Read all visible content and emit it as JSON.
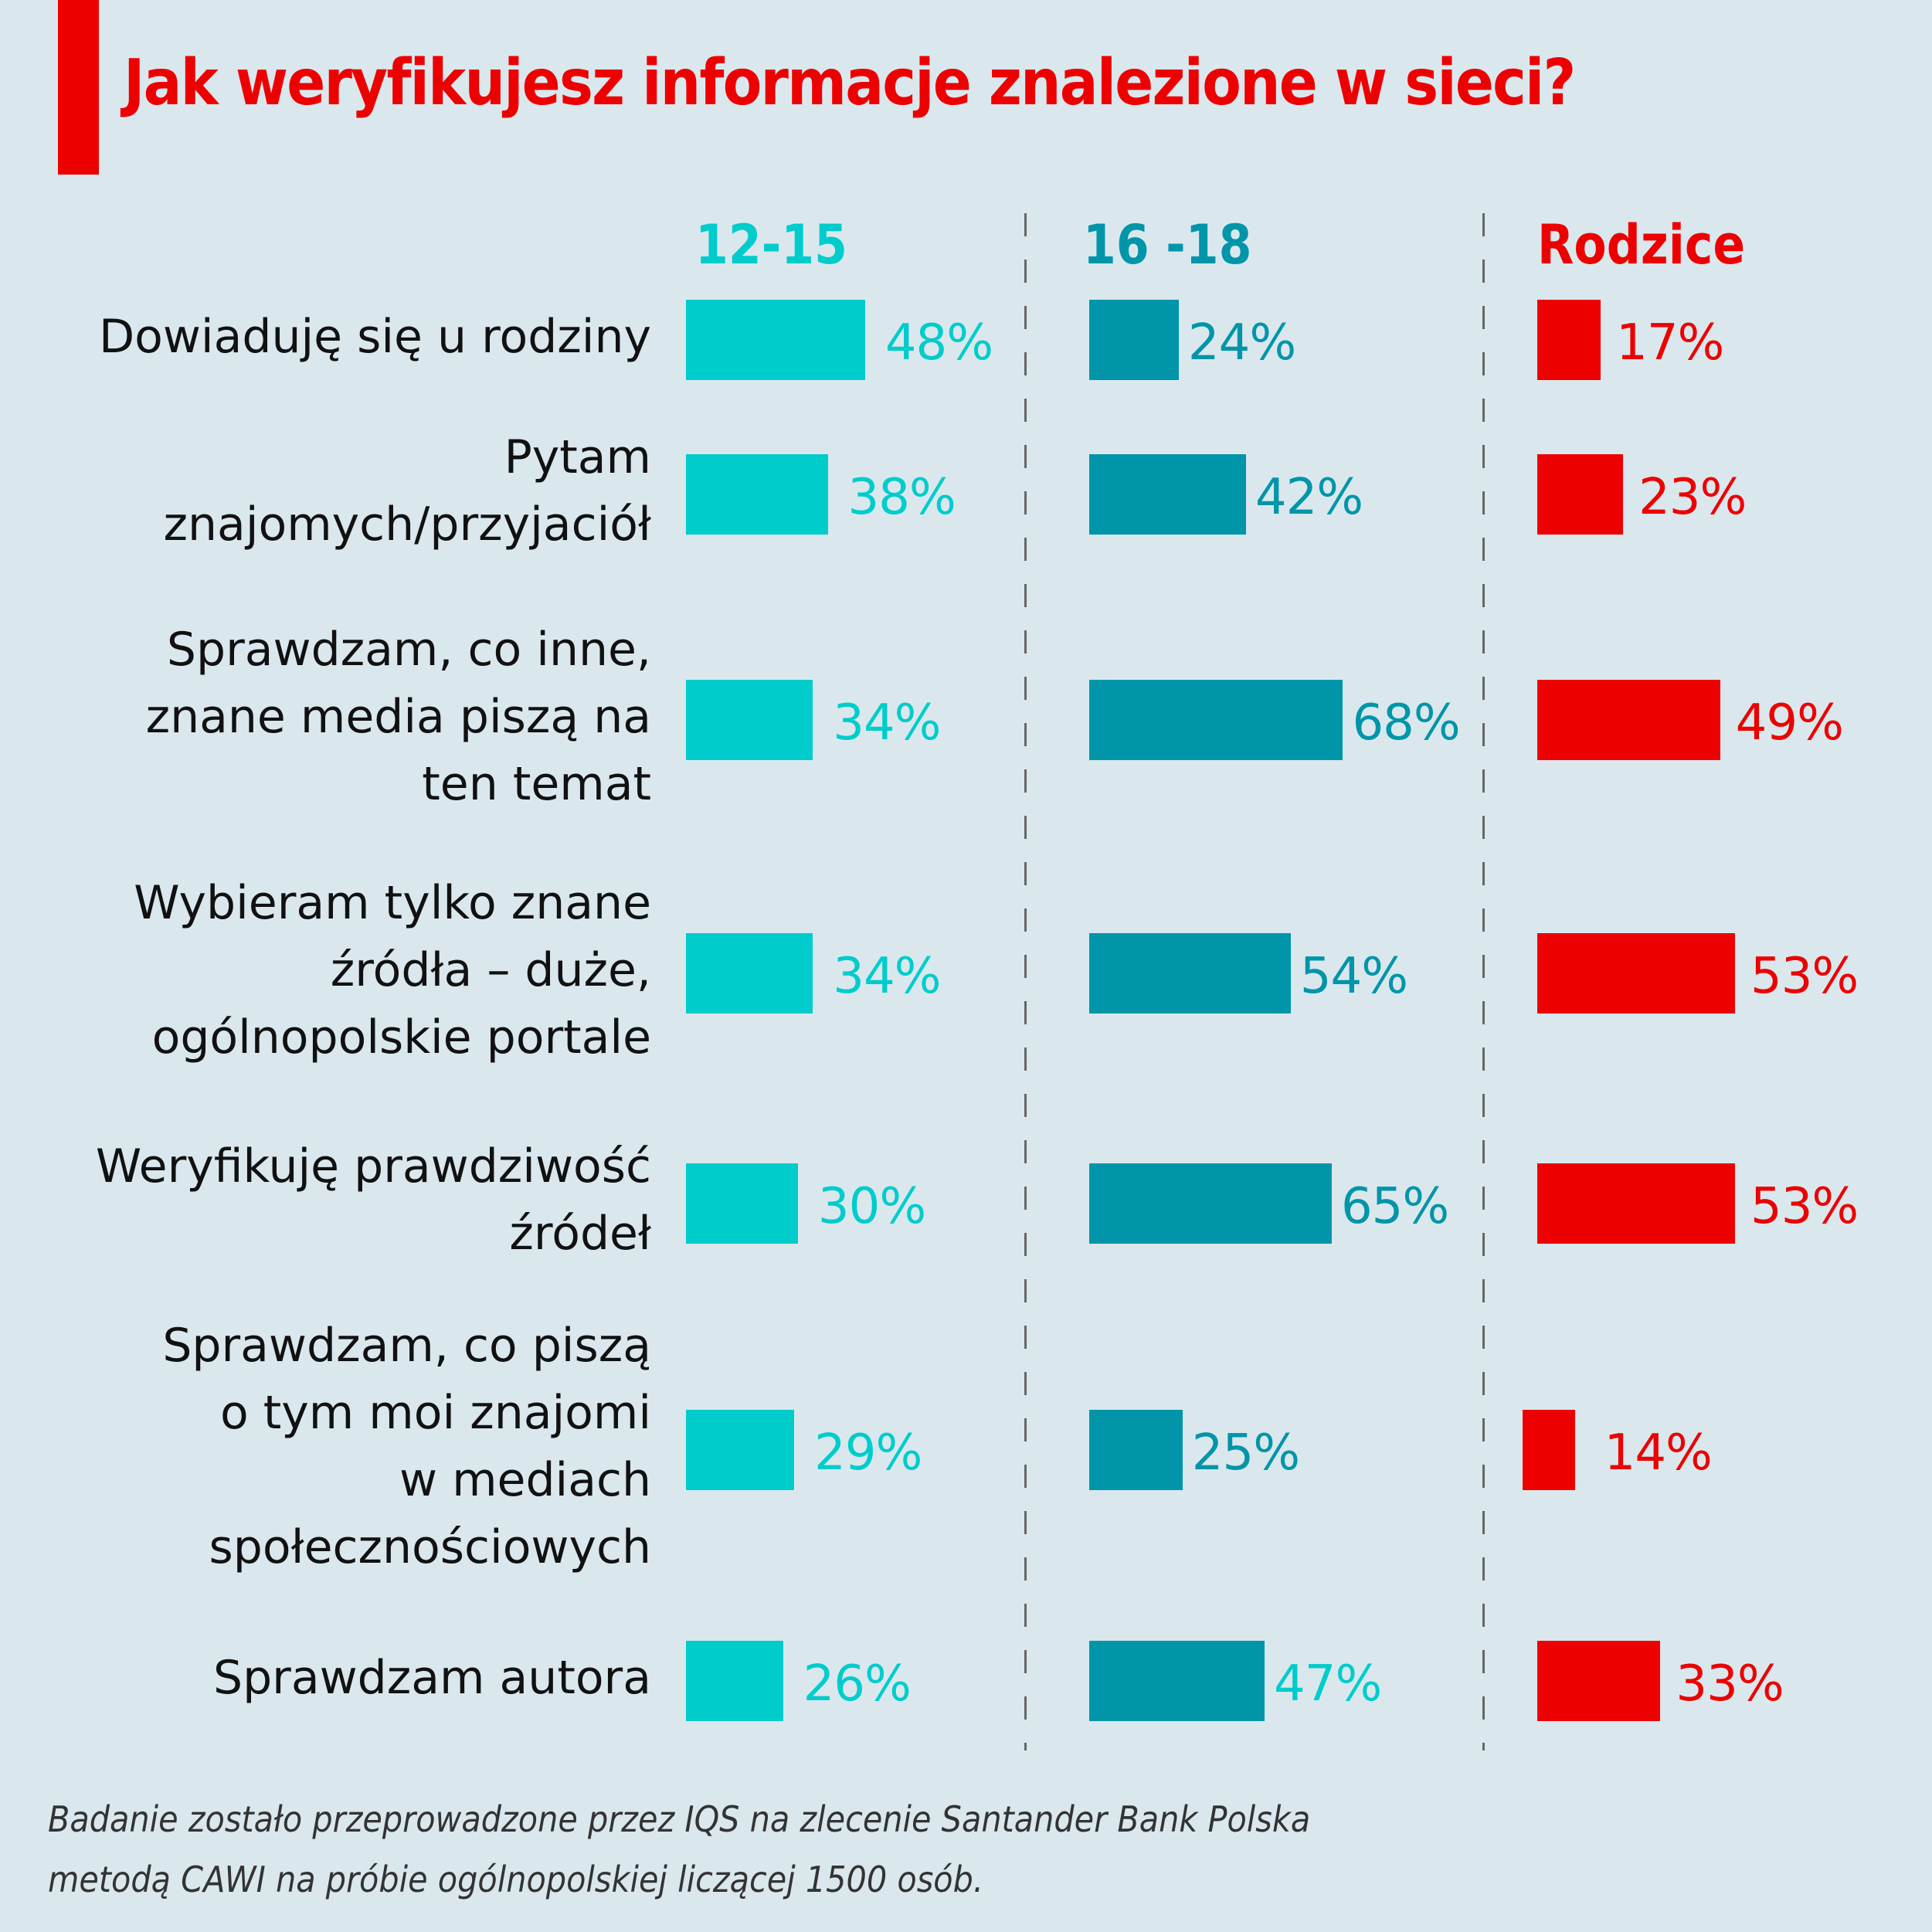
{
  "title": "Jak weryfikujesz informacje znalezione w sieci?",
  "colors": {
    "accent": "#ec0000",
    "teen_young": "#00cccc",
    "teen_old": "#0095a9",
    "parents": "#ec0000",
    "background": "#dae8ee"
  },
  "chart_data": {
    "type": "bar",
    "orientation": "horizontal",
    "title": "Jak weryfikujesz informacje znalezione w sieci?",
    "unit": "%",
    "categories": [
      "Dowiaduję się u rodziny",
      "Pytam znajomych/przyjaciół",
      "Sprawdzam, co inne, znane media piszą na ten temat",
      "Wybieram tylko znane źródła – duże, ogólnopolskie portale",
      "Weryfikuję prawdziwość źródeł",
      "Sprawdzam, co piszą o tym moi znajomi w mediach społecznościowych",
      "Sprawdzam autora"
    ],
    "category_lines": [
      [
        "Dowiaduję się u rodziny"
      ],
      [
        "Pytam",
        "znajomych/przyjaciół"
      ],
      [
        "Sprawdzam, co inne,",
        "znane media piszą na",
        "ten temat"
      ],
      [
        "Wybieram tylko znane",
        "źródła – duże,",
        "ogólnopolskie portale"
      ],
      [
        "Weryfikuję prawdziwość",
        "źródeł"
      ],
      [
        "Sprawdzam, co piszą",
        "o tym moi znajomi",
        "w mediach",
        "społecznościowych"
      ],
      [
        "Sprawdzam autora"
      ]
    ],
    "series": [
      {
        "name": "12-15",
        "values": [
          48,
          38,
          34,
          34,
          30,
          29,
          26
        ],
        "labels": [
          "48%",
          "38%",
          "34%",
          "34%",
          "30%",
          "29%",
          "26%"
        ]
      },
      {
        "name": "16 -18",
        "values": [
          24,
          42,
          68,
          54,
          65,
          25,
          47
        ],
        "labels": [
          "24%",
          "42%",
          "68%",
          "54%",
          "65%",
          "25%",
          "47%"
        ]
      },
      {
        "name": "Rodzice",
        "values": [
          17,
          23,
          49,
          53,
          53,
          14,
          33
        ],
        "labels": [
          "17%",
          "23%",
          "49%",
          "53%",
          "53%",
          "14%",
          "33%"
        ]
      }
    ],
    "xlim": [
      0,
      100
    ],
    "legend": "column headers at top",
    "grid": false
  },
  "footnote": [
    "Badanie zostało przeprowadzone przez IQS na zlecenie Santander Bank Polska",
    "metodą CAWI na próbie ogólnopolskiej liczącej 1500 osób."
  ]
}
